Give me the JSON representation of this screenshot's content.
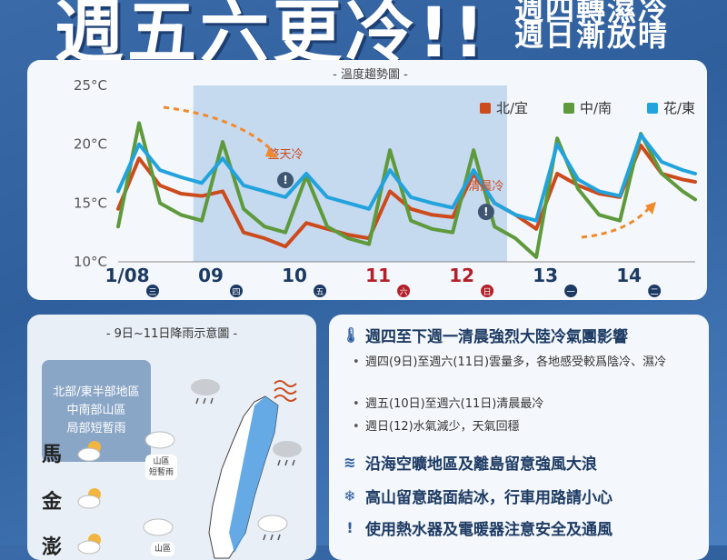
{
  "header": {
    "headline": "週五六更冷!!",
    "sub1": "週四轉濕冷",
    "sub2": "週日漸放晴"
  },
  "chart_data": {
    "type": "line",
    "title": "- 溫度趨勢圖 -",
    "ylim": [
      10,
      25
    ],
    "yticks": [
      "25°C",
      "20°C",
      "15°C",
      "10°C"
    ],
    "ytick_values": [
      25,
      20,
      15,
      10
    ],
    "xlim": [
      0,
      6.9
    ],
    "days": [
      {
        "label": "1/08",
        "weekday": "三",
        "color": "#1c3a63"
      },
      {
        "label": "09",
        "weekday": "四",
        "color": "#1c3a63"
      },
      {
        "label": "10",
        "weekday": "五",
        "color": "#1c3a63"
      },
      {
        "label": "11",
        "weekday": "六",
        "color": "#b3202a"
      },
      {
        "label": "12",
        "weekday": "日",
        "color": "#b3202a"
      },
      {
        "label": "13",
        "weekday": "一",
        "color": "#1c3a63"
      },
      {
        "label": "14",
        "weekday": "二",
        "color": "#1c3a63"
      }
    ],
    "shade_range": [
      0.9,
      4.65
    ],
    "annotations": [
      {
        "text": "整天冷",
        "x": 2.0,
        "y": 18.8
      },
      {
        "text": "清晨冷",
        "x": 4.4,
        "y": 16.1
      }
    ],
    "series": [
      {
        "name": "北/宜",
        "color": "#cc4a1c",
        "x": [
          0,
          0.25,
          0.5,
          0.75,
          1,
          1.25,
          1.5,
          1.75,
          2,
          2.25,
          2.5,
          2.75,
          3,
          3.25,
          3.5,
          3.75,
          4,
          4.25,
          4.5,
          4.75,
          5,
          5.25,
          5.5,
          5.75,
          6,
          6.25,
          6.5,
          6.75,
          6.9
        ],
        "y": [
          14.5,
          18.8,
          16.5,
          15.8,
          15.6,
          16.0,
          12.5,
          12.0,
          11.3,
          13.3,
          12.8,
          12.3,
          12.0,
          16.0,
          14.5,
          14.0,
          13.8,
          17.5,
          15.0,
          14.0,
          12.8,
          17.5,
          16.5,
          15.8,
          15.5,
          19.9,
          17.5,
          17.0,
          16.8
        ]
      },
      {
        "name": "中/南",
        "color": "#5e9a3c",
        "x": [
          0,
          0.25,
          0.5,
          0.75,
          1,
          1.25,
          1.5,
          1.75,
          2,
          2.25,
          2.5,
          2.75,
          3,
          3.25,
          3.5,
          3.75,
          4,
          4.25,
          4.5,
          4.75,
          5,
          5.25,
          5.5,
          5.75,
          6,
          6.25,
          6.5,
          6.75,
          6.9
        ],
        "y": [
          13.0,
          21.8,
          15.0,
          14.0,
          13.5,
          20.2,
          14.5,
          13.0,
          12.5,
          17.3,
          13.0,
          12.0,
          11.5,
          19.5,
          13.5,
          12.8,
          12.5,
          19.5,
          13.0,
          12.0,
          10.4,
          20.5,
          16.2,
          14.0,
          13.5,
          20.9,
          17.5,
          16.0,
          15.3
        ]
      },
      {
        "name": "花/東",
        "color": "#22a3dd",
        "x": [
          0,
          0.25,
          0.5,
          0.75,
          1,
          1.25,
          1.5,
          1.75,
          2,
          2.25,
          2.5,
          2.75,
          3,
          3.25,
          3.5,
          3.75,
          4,
          4.25,
          4.5,
          4.75,
          5,
          5.25,
          5.5,
          5.75,
          6,
          6.25,
          6.5,
          6.75,
          6.9
        ],
        "y": [
          16.0,
          20.0,
          17.8,
          17.2,
          16.7,
          18.8,
          16.5,
          16.0,
          15.5,
          17.5,
          15.5,
          15.0,
          14.5,
          17.8,
          15.5,
          15.0,
          14.6,
          17.8,
          15.0,
          14.0,
          13.5,
          20.0,
          17.0,
          16.0,
          15.6,
          20.8,
          18.5,
          17.8,
          17.5
        ]
      }
    ]
  },
  "rain_map": {
    "title": "- 9日~11日降雨示意圖 -",
    "region_lines": [
      "北部/東半部地區",
      "中南部山區",
      "局部短暫雨"
    ],
    "islands": [
      "馬",
      "金",
      "澎"
    ],
    "mountain_label": [
      "山區",
      "短暫雨"
    ],
    "bottom_label": "山區"
  },
  "notes": {
    "heading1": "週四至下週一清晨強烈大陸冷氣團影響",
    "bullets": [
      "週四(9日)至週六(11日)雲量多，各地感受較爲陰冷、濕冷",
      "週五(10日)至週六(11日)清晨最冷",
      "週日(12)水氣減少，天氣回穩"
    ],
    "heading2": "沿海空曠地區及離島留意強風大浪",
    "heading3": "高山留意路面結冰，行車用路請小心",
    "heading4": "使用熱水器及電暖器注意安全及通風"
  },
  "icons": {
    "thermometer": "thermometer-icon",
    "wind": "wind-icon",
    "snowflake": "snowflake-icon",
    "warning": "warning-icon",
    "sun_cloud": "sun-cloud-icon",
    "rain_cloud": "rain-cloud-icon"
  }
}
